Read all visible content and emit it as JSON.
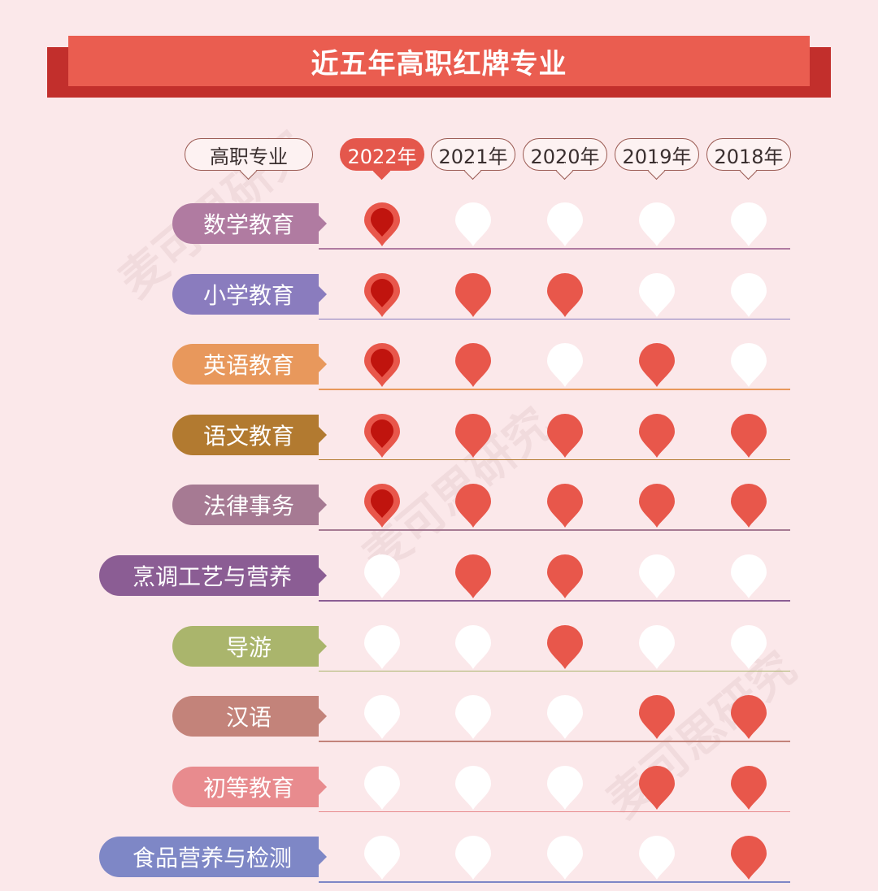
{
  "title": "近五年高职红牌专业",
  "watermark": "麦可思研究",
  "chart_data": {
    "type": "table",
    "row_header": "高职专业",
    "columns": [
      "2022年",
      "2021年",
      "2020年",
      "2019年",
      "2018年"
    ],
    "highlight_column": "2022年",
    "rows": [
      {
        "label": "数学教育",
        "color": "#b07ba1",
        "marked": [
          true,
          false,
          false,
          false,
          false
        ]
      },
      {
        "label": "小学教育",
        "color": "#8a7cbe",
        "marked": [
          true,
          true,
          true,
          false,
          false
        ]
      },
      {
        "label": "英语教育",
        "color": "#e8985c",
        "marked": [
          true,
          true,
          false,
          true,
          false
        ]
      },
      {
        "label": "语文教育",
        "color": "#b27a30",
        "marked": [
          true,
          true,
          true,
          true,
          true
        ]
      },
      {
        "label": "法律事务",
        "color": "#a67a93",
        "marked": [
          true,
          true,
          true,
          true,
          true
        ]
      },
      {
        "label": "烹调工艺与营养",
        "color": "#8b5d94",
        "marked": [
          false,
          true,
          true,
          false,
          false
        ]
      },
      {
        "label": "导游",
        "color": "#aab56c",
        "marked": [
          false,
          false,
          true,
          false,
          false
        ]
      },
      {
        "label": "汉语",
        "color": "#c3837a",
        "marked": [
          false,
          false,
          false,
          true,
          true
        ]
      },
      {
        "label": "初等教育",
        "color": "#e88b8e",
        "marked": [
          false,
          false,
          false,
          true,
          true
        ]
      },
      {
        "label": "食品营养与检测",
        "color": "#7e87c6",
        "marked": [
          false,
          false,
          false,
          false,
          true
        ]
      }
    ],
    "colors": {
      "marked": "#e8574b",
      "marked_current_inner": "#c0140e",
      "unmarked": "#ffffff"
    }
  }
}
